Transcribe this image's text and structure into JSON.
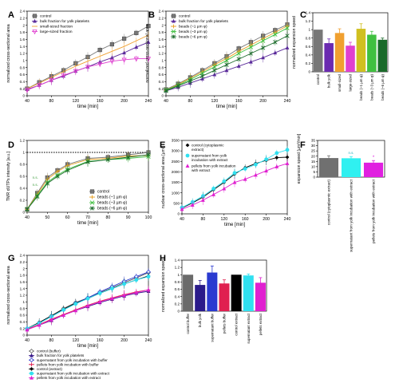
{
  "chart_data": [
    {
      "panel": "A",
      "type": "line",
      "xlabel": "time [min]",
      "ylabel": "normalized cross-sectional area",
      "xlim": [
        40,
        240
      ],
      "ylim": [
        0,
        2.4
      ],
      "xticks": [
        40,
        80,
        120,
        160,
        200,
        240
      ],
      "yticks": [
        0,
        0.2,
        0.4,
        0.6,
        0.8,
        1.0,
        1.2,
        1.4,
        1.6,
        1.8,
        2.0,
        2.2,
        2.4
      ],
      "legend": "top-left",
      "series": [
        {
          "name": "control",
          "color": "#777777",
          "marker": "square",
          "x": [
            40,
            60,
            80,
            100,
            120,
            140,
            160,
            180,
            200,
            220,
            240
          ],
          "y": [
            0.2,
            0.38,
            0.55,
            0.72,
            0.92,
            1.1,
            1.3,
            1.46,
            1.62,
            1.78,
            1.98
          ]
        },
        {
          "name": "bulk fraction for yolk platelets",
          "color": "#5a2a9a",
          "marker": "triangle",
          "x": [
            40,
            60,
            80,
            100,
            120,
            140,
            160,
            180,
            200,
            220,
            240
          ],
          "y": [
            0.18,
            0.3,
            0.44,
            0.56,
            0.7,
            0.82,
            0.96,
            1.08,
            1.22,
            1.38,
            1.52
          ]
        },
        {
          "name": "small-sized fraction",
          "color": "#f0a030",
          "marker": "line",
          "x": [
            40,
            60,
            80,
            100,
            120,
            140,
            160,
            180,
            200,
            220,
            240
          ],
          "y": [
            0.2,
            0.36,
            0.52,
            0.68,
            0.84,
            0.98,
            1.12,
            1.26,
            1.4,
            1.56,
            1.72
          ]
        },
        {
          "name": "large-sized fraction",
          "color": "#e040d0",
          "marker": "triangle-down-open",
          "x": [
            40,
            60,
            80,
            100,
            120,
            140,
            160,
            180,
            200,
            220,
            240
          ],
          "y": [
            0.16,
            0.3,
            0.44,
            0.58,
            0.7,
            0.82,
            0.9,
            0.98,
            1.02,
            1.05,
            1.05
          ]
        }
      ]
    },
    {
      "panel": "B",
      "type": "line",
      "xlabel": "time [min]",
      "ylabel": "normalized cross-sectional area",
      "xlim": [
        40,
        240
      ],
      "ylim": [
        0,
        2.4
      ],
      "xticks": [
        40,
        80,
        120,
        160,
        200,
        240
      ],
      "yticks": [
        0,
        0.2,
        0.4,
        0.6,
        0.8,
        1.0,
        1.2,
        1.4,
        1.6,
        1.8,
        2.0,
        2.2,
        2.4
      ],
      "legend": "top-left",
      "series": [
        {
          "name": "control",
          "color": "#777777",
          "marker": "square",
          "x": [
            40,
            60,
            80,
            100,
            120,
            140,
            160,
            180,
            200,
            220,
            240
          ],
          "y": [
            0.18,
            0.34,
            0.52,
            0.72,
            0.92,
            1.12,
            1.34,
            1.52,
            1.7,
            1.86,
            2.02
          ]
        },
        {
          "name": "bulk fraction for yolk platelets",
          "color": "#5a2a9a",
          "marker": "triangle",
          "x": [
            40,
            60,
            80,
            100,
            120,
            140,
            160,
            180,
            200,
            220,
            240
          ],
          "y": [
            0.14,
            0.24,
            0.36,
            0.48,
            0.6,
            0.72,
            0.84,
            0.96,
            1.08,
            1.22,
            1.36
          ]
        },
        {
          "name": "beads (~1 µm φ)",
          "color": "#e8a020",
          "marker": "plus",
          "x": [
            40,
            60,
            80,
            100,
            120,
            140,
            160,
            180,
            200,
            220,
            240
          ],
          "y": [
            0.16,
            0.32,
            0.5,
            0.68,
            0.88,
            1.06,
            1.26,
            1.44,
            1.62,
            1.8,
            1.98
          ]
        },
        {
          "name": "beads (~3 µm φ)",
          "color": "#40c040",
          "marker": "x",
          "x": [
            40,
            60,
            80,
            100,
            120,
            140,
            160,
            180,
            200,
            220,
            240
          ],
          "y": [
            0.16,
            0.3,
            0.46,
            0.64,
            0.82,
            1.0,
            1.2,
            1.38,
            1.56,
            1.74,
            1.92
          ]
        },
        {
          "name": "beads (~6 µm φ)",
          "color": "#1a6a2a",
          "marker": "asterisk",
          "x": [
            40,
            60,
            80,
            100,
            120,
            140,
            160,
            180,
            200,
            220,
            240
          ],
          "y": [
            0.14,
            0.28,
            0.42,
            0.56,
            0.72,
            0.88,
            1.04,
            1.2,
            1.36,
            1.52,
            1.7
          ]
        }
      ]
    },
    {
      "panel": "C",
      "type": "bar",
      "ylabel": "normalized expansion speed",
      "ylim": [
        0,
        1.4
      ],
      "yticks": [
        0,
        0.2,
        0.4,
        0.6,
        0.8,
        1.0,
        1.2,
        1.4
      ],
      "categories": [
        "control",
        "bulk yolk",
        "small-sized",
        "large-sized",
        "beads (~1 µm φ)",
        "beads (~3 µm φ)",
        "beads (~6 µm φ)"
      ],
      "values": [
        1.0,
        0.68,
        0.92,
        0.62,
        1.02,
        0.88,
        0.76
      ],
      "errors": [
        0.0,
        0.1,
        0.1,
        0.08,
        0.12,
        0.08,
        0.04
      ],
      "colors": [
        "#777777",
        "#6a2ab0",
        "#f0a030",
        "#e040d0",
        "#d0c020",
        "#40c040",
        "#1a6a2a"
      ]
    },
    {
      "panel": "D",
      "type": "line",
      "xlabel": "time [min]",
      "ylabel": "TMR dUTPs intensity [a.u.]",
      "xlim": [
        40,
        100
      ],
      "ylim": [
        0,
        1.2
      ],
      "xticks": [
        40,
        50,
        60,
        70,
        80,
        90,
        100
      ],
      "yticks": [
        0,
        0.2,
        0.4,
        0.6,
        0.8,
        1.0,
        1.2
      ],
      "legend": "bottom-right",
      "annotations": [
        "n.s.",
        "n.s."
      ],
      "series": [
        {
          "name": "control",
          "color": "#777777",
          "marker": "square",
          "x": [
            40,
            45,
            50,
            55,
            60,
            70,
            80,
            90,
            100
          ],
          "y": [
            0.05,
            0.32,
            0.58,
            0.7,
            0.8,
            0.9,
            0.92,
            0.96,
            1.0
          ]
        },
        {
          "name": "beads (~1 µm φ)",
          "color": "#e8a020",
          "marker": "plus",
          "x": [
            40,
            45,
            50,
            55,
            60,
            70,
            80,
            90,
            100
          ],
          "y": [
            0.05,
            0.3,
            0.55,
            0.68,
            0.78,
            0.88,
            0.9,
            0.94,
            0.95
          ]
        },
        {
          "name": "beads (~3 µm φ)",
          "color": "#40c040",
          "marker": "x",
          "x": [
            40,
            45,
            50,
            55,
            60,
            70,
            80,
            90,
            100
          ],
          "y": [
            0.05,
            0.28,
            0.5,
            0.62,
            0.72,
            0.85,
            0.88,
            0.9,
            0.93
          ]
        },
        {
          "name": "beads (~6 µm φ)",
          "color": "#1a6a2a",
          "marker": "asterisk",
          "x": [
            40,
            45,
            50,
            55,
            60,
            70,
            80,
            90,
            100
          ],
          "y": [
            0.05,
            0.26,
            0.48,
            0.6,
            0.7,
            0.84,
            0.88,
            0.92,
            0.96
          ]
        }
      ]
    },
    {
      "panel": "E",
      "type": "line",
      "xlabel": "time [min]",
      "ylabel": "nuclear cross-sectional area [µm²]",
      "xlim": [
        40,
        240
      ],
      "ylim": [
        0,
        3500
      ],
      "xticks": [
        40,
        80,
        120,
        160,
        200,
        240
      ],
      "yticks": [
        0,
        500,
        1000,
        1500,
        2000,
        2500,
        3000,
        3500
      ],
      "legend": "top-left",
      "series": [
        {
          "name": "control (cytoplasmic extract)",
          "color": "#000000",
          "marker": "diamond",
          "x": [
            40,
            60,
            80,
            100,
            120,
            140,
            160,
            180,
            200,
            220,
            240
          ],
          "y": [
            280,
            520,
            800,
            1150,
            1500,
            1900,
            2200,
            2400,
            2550,
            2680,
            2700
          ]
        },
        {
          "name": "supernatant from yolk incubation with extract",
          "color": "#30e0f0",
          "marker": "circle",
          "x": [
            40,
            60,
            80,
            100,
            120,
            140,
            160,
            180,
            200,
            220,
            240
          ],
          "y": [
            300,
            560,
            850,
            1200,
            1550,
            1950,
            2150,
            2350,
            2600,
            2900,
            3050
          ]
        },
        {
          "name": "pellets from yolk incubation with extract",
          "color": "#e020d0",
          "marker": "triangle",
          "x": [
            40,
            60,
            80,
            100,
            120,
            140,
            160,
            180,
            200,
            220,
            240
          ],
          "y": [
            220,
            420,
            650,
            920,
            1200,
            1500,
            1650,
            1850,
            2050,
            2250,
            2400
          ]
        }
      ]
    },
    {
      "panel": "F",
      "type": "bar",
      "ylabel": "expansion speed [µm²/min]",
      "ylim": [
        0,
        35
      ],
      "yticks": [
        0,
        5,
        10,
        15,
        20,
        25,
        30,
        35
      ],
      "categories": [
        "control (cytoplasmic extract)",
        "supernatant from yolk incubation with extract",
        "pellets from yolk incubation with extract"
      ],
      "values": [
        18.2,
        18.0,
        13.8
      ],
      "errors": [
        2.2,
        1.6,
        2.0
      ],
      "colors": [
        "#707070",
        "#30f0f0",
        "#e020e0"
      ],
      "annotations": [
        "n.s.",
        "*"
      ]
    },
    {
      "panel": "G",
      "type": "line",
      "xlabel": "time [min]",
      "ylabel": "normalized cross-sectional area",
      "xlim": [
        40,
        240
      ],
      "ylim": [
        0,
        2.4
      ],
      "xticks": [
        40,
        80,
        120,
        160,
        200,
        240
      ],
      "yticks": [
        0,
        0.2,
        0.4,
        0.6,
        0.8,
        1.0,
        1.2,
        1.4,
        1.6,
        1.8,
        2.0,
        2.2,
        2.4
      ],
      "legend": "bottom",
      "series": [
        {
          "name": "control (buffer)",
          "color": "#606060",
          "marker": "diamond-open",
          "x": [
            40,
            60,
            80,
            100,
            120,
            140,
            160,
            180,
            200,
            220,
            240
          ],
          "y": [
            0.2,
            0.38,
            0.58,
            0.8,
            0.98,
            1.12,
            1.28,
            1.42,
            1.58,
            1.72,
            1.88
          ]
        },
        {
          "name": "bulk fraction for yolk platelets",
          "color": "#3a1a8a",
          "marker": "triangle",
          "x": [
            40,
            60,
            80,
            100,
            120,
            140,
            160,
            180,
            200,
            220,
            240
          ],
          "y": [
            0.18,
            0.3,
            0.44,
            0.6,
            0.74,
            0.86,
            0.98,
            1.08,
            1.18,
            1.26,
            1.32
          ]
        },
        {
          "name": "supernatant from yolk incubation with buffer",
          "color": "#2a3ad0",
          "marker": "diamond-open",
          "x": [
            40,
            60,
            80,
            100,
            120,
            140,
            160,
            180,
            200,
            220,
            240
          ],
          "y": [
            0.2,
            0.36,
            0.56,
            0.76,
            0.96,
            1.12,
            1.3,
            1.46,
            1.62,
            1.76,
            1.9
          ]
        },
        {
          "name": "pellets from yolk incubation with buffer",
          "color": "#e02050",
          "marker": "plus",
          "x": [
            40,
            60,
            80,
            100,
            120,
            140,
            160,
            180,
            200,
            220,
            240
          ],
          "y": [
            0.18,
            0.32,
            0.48,
            0.62,
            0.76,
            0.9,
            1.02,
            1.12,
            1.22,
            1.3,
            1.36
          ]
        },
        {
          "name": "control (extract)",
          "color": "#000000",
          "marker": "diamond",
          "x": [
            40,
            60,
            80,
            100,
            120,
            140,
            160,
            180,
            200,
            220,
            240
          ],
          "y": [
            0.2,
            0.38,
            0.58,
            0.78,
            0.96,
            1.1,
            1.26,
            1.4,
            1.54,
            1.66,
            1.78
          ]
        },
        {
          "name": "supernatant from yolk incubation with extract",
          "color": "#30e0f0",
          "marker": "circle",
          "x": [
            40,
            60,
            80,
            100,
            120,
            140,
            160,
            180,
            200,
            220,
            240
          ],
          "y": [
            0.2,
            0.36,
            0.56,
            0.76,
            0.94,
            1.1,
            1.26,
            1.4,
            1.54,
            1.66,
            1.76
          ]
        },
        {
          "name": "pellets from yolk incubation with extract",
          "color": "#e020d0",
          "marker": "triangle",
          "x": [
            40,
            60,
            80,
            100,
            120,
            140,
            160,
            180,
            200,
            220,
            240
          ],
          "y": [
            0.16,
            0.3,
            0.46,
            0.6,
            0.74,
            0.88,
            1.0,
            1.1,
            1.2,
            1.28,
            1.36
          ]
        }
      ]
    },
    {
      "panel": "H",
      "type": "bar",
      "ylabel": "normalized expansion speed",
      "ylim": [
        0,
        1.4
      ],
      "yticks": [
        0,
        0.2,
        0.4,
        0.6,
        0.8,
        1.0,
        1.2,
        1.4
      ],
      "categories": [
        "control buffer",
        "bulk yolk",
        "supernatant buffer",
        "pellets buffer",
        "control extract",
        "supernatant extract",
        "pellets extract"
      ],
      "values": [
        1.0,
        0.72,
        1.06,
        0.76,
        1.0,
        0.98,
        0.78
      ],
      "errors": [
        0.0,
        0.12,
        0.18,
        0.1,
        0.0,
        0.04,
        0.14
      ],
      "colors": [
        "#6a6a6a",
        "#2a1a8a",
        "#2a3ad0",
        "#e02050",
        "#000000",
        "#30e0f0",
        "#e020d0"
      ]
    }
  ]
}
